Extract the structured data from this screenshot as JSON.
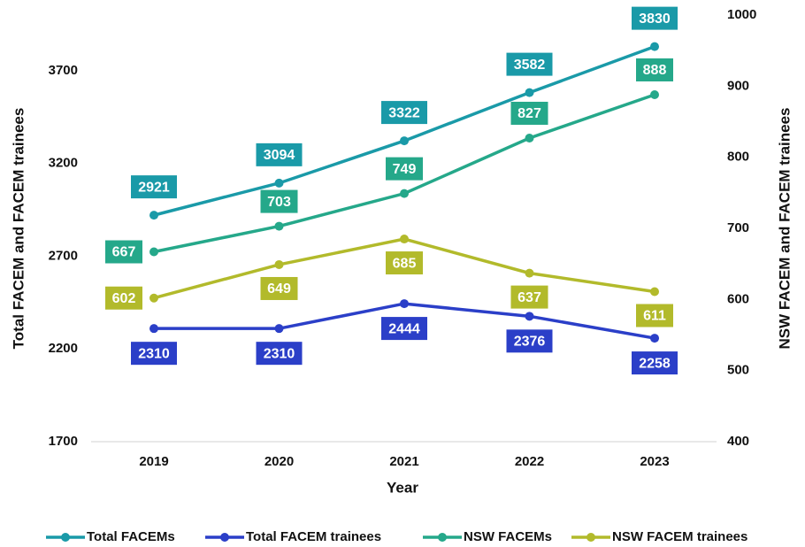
{
  "chart_data": {
    "type": "line",
    "x_label": "Year",
    "y_label": "Total FACEM and FACEM trainees",
    "y2_label": "NSW FACEM and FACEM trainees",
    "categories": [
      "2019",
      "2020",
      "2021",
      "2022",
      "2023"
    ],
    "series": [
      {
        "name": "Total FACEMs",
        "color": "#1a9aa8",
        "values": [
          2921,
          3094,
          3322,
          3582,
          3830
        ]
      },
      {
        "name": "Total FACEM trainees",
        "color": "#2b3fc8",
        "values": [
          2310,
          2310,
          2444,
          2376,
          2258
        ]
      },
      {
        "name": "NSW FACEMs",
        "color": "#25a88a",
        "axis": "y2",
        "values": [
          667,
          703,
          749,
          827,
          888
        ]
      },
      {
        "name": "NSW FACEM trainees",
        "color": "#b2ba2b",
        "axis": "y2",
        "values": [
          602,
          649,
          685,
          637,
          611
        ]
      }
    ],
    "ylim": [
      1700,
      4000
    ],
    "yticks": [
      1700,
      2200,
      2700,
      3200,
      3700
    ],
    "y2lim": [
      400,
      1000
    ],
    "y2ticks": [
      400,
      500,
      600,
      700,
      800,
      900,
      1000
    ],
    "legend": "bottom"
  }
}
